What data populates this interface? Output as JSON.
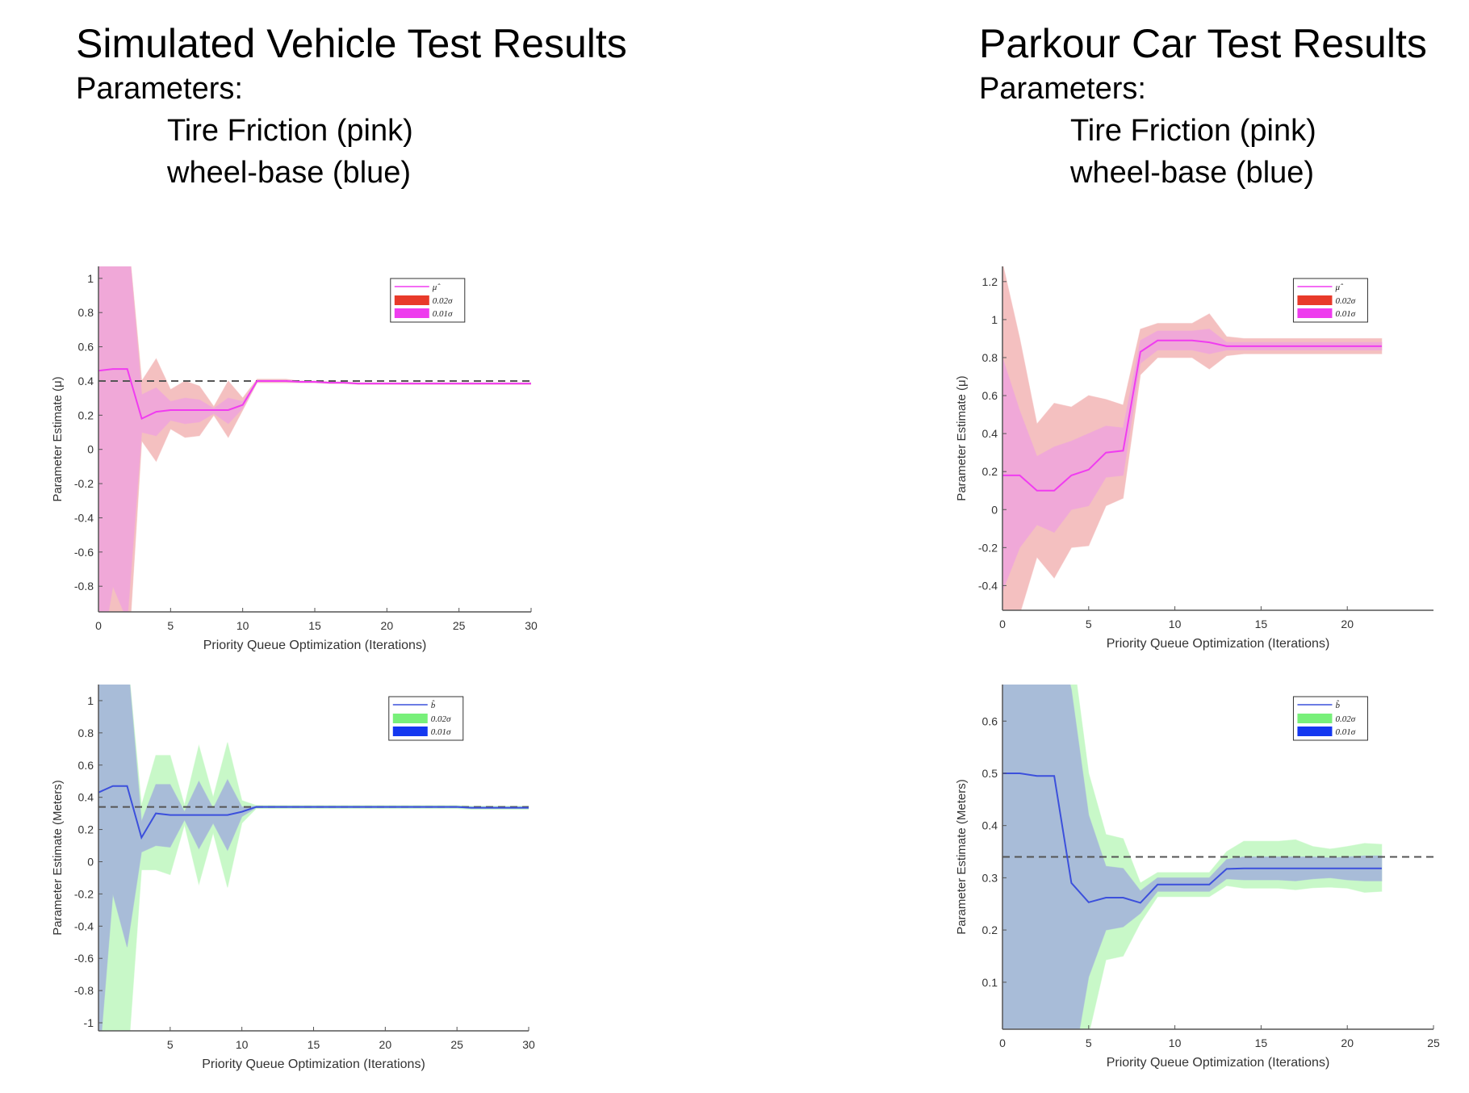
{
  "left_heading": {
    "title": "Simulated Vehicle Test Results",
    "subtitle": "Parameters:",
    "param1": "Tire Friction (pink)",
    "param2": "wheel-base (blue)"
  },
  "right_heading": {
    "title": "Parkour Car Test Results",
    "subtitle": "Parameters:",
    "param1": "Tire Friction (pink)",
    "param2": "wheel-base (blue)"
  },
  "colors": {
    "pink_line": "#f03cf0",
    "pink_inner": "#f0a8d8",
    "red_outer": "#f4c0c0",
    "blue_line": "#3c50dc",
    "blue_inner": "#a8bcd8",
    "green_outer": "#c8f8c8",
    "dashed_ref": "#555555"
  },
  "chart_data": [
    {
      "id": "sim-friction",
      "type": "line",
      "xlabel": "Priority Queue Optimization (Iterations)",
      "ylabel": "Parameter Estimate (μ)",
      "xlim": [
        0,
        30
      ],
      "ylim": [
        -0.95,
        1.07
      ],
      "xticks": [
        0,
        5,
        10,
        15,
        20,
        25,
        30
      ],
      "yticks": [
        -0.8,
        -0.6,
        -0.4,
        -0.2,
        0,
        0.2,
        0.4,
        0.6,
        0.8,
        1
      ],
      "reference": 0.4,
      "legend": [
        "μ̂",
        "0.02σ",
        "0.01σ"
      ],
      "line_color": "#f03cf0",
      "outer_color": "#f4c0c0",
      "inner_color": "#f0a8d8",
      "legend_outer_color": "#e83a2a",
      "legend_inner_color": "#ee3cee",
      "x": [
        0,
        1,
        2,
        3,
        4,
        5,
        6,
        7,
        8,
        9,
        10,
        11,
        12,
        13,
        14,
        15,
        16,
        17,
        18,
        19,
        20,
        21,
        22,
        23,
        24,
        25,
        26,
        27,
        28,
        29,
        30
      ],
      "mean": [
        0.46,
        0.47,
        0.47,
        0.18,
        0.22,
        0.23,
        0.23,
        0.23,
        0.23,
        0.23,
        0.26,
        0.4,
        0.4,
        0.4,
        0.395,
        0.395,
        0.39,
        0.39,
        0.385,
        0.385,
        0.385,
        0.385,
        0.385,
        0.385,
        0.385,
        0.385,
        0.385,
        0.385,
        0.385,
        0.385,
        0.385
      ],
      "outer_upper": [
        1.3,
        1.3,
        1.3,
        0.4,
        0.53,
        0.35,
        0.4,
        0.37,
        0.25,
        0.4,
        0.3,
        0.41,
        0.41,
        0.41,
        0.4,
        0.4,
        0.395,
        0.395,
        0.39,
        0.39,
        0.39,
        0.39,
        0.39,
        0.39,
        0.39,
        0.39,
        0.39,
        0.39,
        0.39,
        0.39,
        0.39
      ],
      "outer_lower": [
        -1.3,
        -1.3,
        -1.3,
        0.05,
        -0.07,
        0.12,
        0.07,
        0.08,
        0.2,
        0.07,
        0.23,
        0.39,
        0.39,
        0.39,
        0.39,
        0.39,
        0.385,
        0.385,
        0.38,
        0.38,
        0.38,
        0.38,
        0.38,
        0.38,
        0.38,
        0.38,
        0.38,
        0.38,
        0.38,
        0.38,
        0.38
      ],
      "inner_upper": [
        1.3,
        1.3,
        1.3,
        0.32,
        0.36,
        0.28,
        0.3,
        0.29,
        0.24,
        0.3,
        0.28,
        0.405,
        0.405,
        0.405,
        0.4,
        0.4,
        0.393,
        0.393,
        0.388,
        0.388,
        0.388,
        0.388,
        0.388,
        0.388,
        0.388,
        0.388,
        0.388,
        0.388,
        0.388,
        0.388,
        0.388
      ],
      "inner_lower": [
        -1.3,
        -0.8,
        -1.0,
        0.1,
        0.08,
        0.17,
        0.15,
        0.16,
        0.21,
        0.15,
        0.24,
        0.395,
        0.395,
        0.395,
        0.39,
        0.39,
        0.387,
        0.387,
        0.382,
        0.382,
        0.382,
        0.382,
        0.382,
        0.382,
        0.382,
        0.382,
        0.382,
        0.382,
        0.382,
        0.382,
        0.382
      ]
    },
    {
      "id": "park-friction",
      "type": "line",
      "xlabel": "Priority Queue Optimization (Iterations)",
      "ylabel": "Parameter Estimate (μ)",
      "xlim": [
        0,
        25
      ],
      "ylim": [
        -0.53,
        1.28
      ],
      "xticks": [
        0,
        5,
        10,
        15,
        20
      ],
      "yticks": [
        -0.4,
        -0.2,
        0,
        0.2,
        0.4,
        0.6,
        0.8,
        1,
        1.2
      ],
      "reference": null,
      "legend": [
        "μ̂",
        "0.02σ",
        "0.01σ"
      ],
      "line_color": "#f03cf0",
      "outer_color": "#f4c0c0",
      "inner_color": "#f0a8d8",
      "legend_outer_color": "#e83a2a",
      "legend_inner_color": "#ee3cee",
      "x": [
        0,
        1,
        2,
        3,
        4,
        5,
        6,
        7,
        8,
        9,
        10,
        11,
        12,
        13,
        14,
        15,
        16,
        17,
        18,
        19,
        20,
        21,
        22
      ],
      "mean": [
        0.18,
        0.18,
        0.1,
        0.1,
        0.18,
        0.21,
        0.3,
        0.31,
        0.83,
        0.89,
        0.89,
        0.89,
        0.88,
        0.86,
        0.86,
        0.86,
        0.86,
        0.86,
        0.86,
        0.86,
        0.86,
        0.86,
        0.86
      ],
      "outer_upper": [
        1.3,
        0.9,
        0.45,
        0.56,
        0.54,
        0.6,
        0.58,
        0.55,
        0.95,
        0.98,
        0.98,
        0.98,
        1.03,
        0.91,
        0.9,
        0.9,
        0.9,
        0.9,
        0.9,
        0.9,
        0.9,
        0.9,
        0.9
      ],
      "outer_lower": [
        -0.6,
        -0.55,
        -0.25,
        -0.36,
        -0.2,
        -0.19,
        0.02,
        0.06,
        0.71,
        0.8,
        0.8,
        0.8,
        0.74,
        0.81,
        0.82,
        0.82,
        0.82,
        0.82,
        0.82,
        0.82,
        0.82,
        0.82,
        0.82
      ],
      "inner_upper": [
        0.8,
        0.52,
        0.28,
        0.33,
        0.36,
        0.4,
        0.44,
        0.43,
        0.89,
        0.94,
        0.94,
        0.94,
        0.95,
        0.88,
        0.88,
        0.88,
        0.88,
        0.88,
        0.88,
        0.88,
        0.88,
        0.88,
        0.88
      ],
      "inner_lower": [
        -0.43,
        -0.2,
        -0.08,
        -0.12,
        0.0,
        0.02,
        0.17,
        0.18,
        0.77,
        0.84,
        0.84,
        0.84,
        0.82,
        0.84,
        0.84,
        0.84,
        0.84,
        0.84,
        0.84,
        0.84,
        0.84,
        0.84,
        0.84
      ]
    },
    {
      "id": "sim-wheelbase",
      "type": "line",
      "xlabel": "Priority Queue Optimization (Iterations)",
      "ylabel": "Parameter Estimate (Meters)",
      "xlim": [
        0,
        30
      ],
      "ylim": [
        -1.05,
        1.1
      ],
      "xticks": [
        5,
        10,
        15,
        20,
        25,
        30
      ],
      "yticks": [
        -1,
        -0.8,
        -0.6,
        -0.4,
        -0.2,
        0,
        0.2,
        0.4,
        0.6,
        0.8,
        1
      ],
      "reference": 0.34,
      "legend": [
        "b̂",
        "0.02σ",
        "0.01σ"
      ],
      "line_color": "#3c50dc",
      "outer_color": "#c8f8c8",
      "inner_color": "#a8bcd8",
      "legend_outer_color": "#78f07a",
      "legend_inner_color": "#1438f0",
      "x": [
        0,
        1,
        2,
        3,
        4,
        5,
        6,
        7,
        8,
        9,
        10,
        11,
        12,
        13,
        14,
        15,
        16,
        17,
        18,
        19,
        20,
        21,
        22,
        23,
        24,
        25,
        26,
        27,
        28,
        29,
        30
      ],
      "mean": [
        0.43,
        0.47,
        0.47,
        0.15,
        0.3,
        0.29,
        0.29,
        0.29,
        0.29,
        0.29,
        0.31,
        0.34,
        0.34,
        0.34,
        0.34,
        0.34,
        0.34,
        0.34,
        0.34,
        0.34,
        0.34,
        0.34,
        0.34,
        0.34,
        0.34,
        0.34,
        0.335,
        0.335,
        0.335,
        0.335,
        0.335
      ],
      "outer_upper": [
        1.3,
        1.3,
        1.3,
        0.35,
        0.66,
        0.66,
        0.35,
        0.72,
        0.4,
        0.74,
        0.38,
        0.35,
        0.35,
        0.35,
        0.35,
        0.35,
        0.35,
        0.35,
        0.35,
        0.35,
        0.35,
        0.35,
        0.35,
        0.35,
        0.35,
        0.35,
        0.345,
        0.345,
        0.345,
        0.345,
        0.345
      ],
      "outer_lower": [
        -1.3,
        -1.3,
        -1.3,
        -0.05,
        -0.05,
        -0.08,
        0.23,
        -0.14,
        0.18,
        -0.16,
        0.24,
        0.33,
        0.33,
        0.33,
        0.33,
        0.33,
        0.33,
        0.33,
        0.33,
        0.33,
        0.33,
        0.33,
        0.33,
        0.33,
        0.33,
        0.33,
        0.325,
        0.325,
        0.325,
        0.325,
        0.325
      ],
      "inner_upper": [
        1.3,
        1.3,
        1.3,
        0.25,
        0.48,
        0.48,
        0.31,
        0.5,
        0.33,
        0.51,
        0.34,
        0.345,
        0.345,
        0.345,
        0.345,
        0.345,
        0.345,
        0.345,
        0.345,
        0.345,
        0.345,
        0.345,
        0.345,
        0.345,
        0.345,
        0.345,
        0.34,
        0.34,
        0.34,
        0.34,
        0.34
      ],
      "inner_lower": [
        -1.3,
        -0.2,
        -0.53,
        0.06,
        0.1,
        0.09,
        0.26,
        0.08,
        0.24,
        0.07,
        0.28,
        0.335,
        0.335,
        0.335,
        0.335,
        0.335,
        0.335,
        0.335,
        0.335,
        0.335,
        0.335,
        0.335,
        0.335,
        0.335,
        0.335,
        0.335,
        0.33,
        0.33,
        0.33,
        0.33,
        0.33
      ]
    },
    {
      "id": "park-wheelbase",
      "type": "line",
      "xlabel": "Priority Queue Optimization (Iterations)",
      "ylabel": "Parameter Estimate (Meters)",
      "xlim": [
        0,
        25
      ],
      "ylim": [
        0.01,
        0.67
      ],
      "xticks": [
        0,
        5,
        10,
        15,
        20,
        25
      ],
      "yticks": [
        0.1,
        0.2,
        0.3,
        0.4,
        0.5,
        0.6
      ],
      "reference": 0.34,
      "legend": [
        "b̂",
        "0.02σ",
        "0.01σ"
      ],
      "line_color": "#3c50dc",
      "outer_color": "#c8f8c8",
      "inner_color": "#a8bcd8",
      "legend_outer_color": "#78f07a",
      "legend_inner_color": "#1438f0",
      "x": [
        0,
        1,
        2,
        3,
        4,
        5,
        6,
        7,
        8,
        9,
        10,
        11,
        12,
        13,
        14,
        15,
        16,
        17,
        18,
        19,
        20,
        21,
        22
      ],
      "mean": [
        0.5,
        0.5,
        0.495,
        0.495,
        0.29,
        0.253,
        0.262,
        0.262,
        0.252,
        0.287,
        0.287,
        0.287,
        0.287,
        0.317,
        0.318,
        0.318,
        0.318,
        0.318,
        0.318,
        0.318,
        0.318,
        0.318,
        0.318
      ],
      "outer_upper": [
        0.8,
        0.8,
        0.8,
        0.8,
        0.75,
        0.5,
        0.383,
        0.375,
        0.29,
        0.31,
        0.31,
        0.31,
        0.31,
        0.35,
        0.37,
        0.37,
        0.37,
        0.373,
        0.36,
        0.355,
        0.36,
        0.366,
        0.364
      ],
      "outer_lower": [
        -0.2,
        -0.2,
        -0.2,
        -0.2,
        -0.15,
        0.0,
        0.143,
        0.15,
        0.214,
        0.264,
        0.264,
        0.264,
        0.264,
        0.285,
        0.28,
        0.28,
        0.28,
        0.277,
        0.281,
        0.282,
        0.28,
        0.272,
        0.274
      ],
      "inner_upper": [
        0.8,
        0.8,
        0.8,
        0.8,
        0.66,
        0.42,
        0.322,
        0.318,
        0.275,
        0.3,
        0.3,
        0.3,
        0.3,
        0.335,
        0.34,
        0.34,
        0.34,
        0.34,
        0.34,
        0.338,
        0.34,
        0.342,
        0.342
      ],
      "inner_lower": [
        -0.2,
        -0.2,
        -0.2,
        -0.2,
        -0.08,
        0.11,
        0.2,
        0.206,
        0.232,
        0.274,
        0.274,
        0.274,
        0.274,
        0.298,
        0.296,
        0.296,
        0.296,
        0.294,
        0.298,
        0.3,
        0.296,
        0.294,
        0.294
      ]
    }
  ]
}
